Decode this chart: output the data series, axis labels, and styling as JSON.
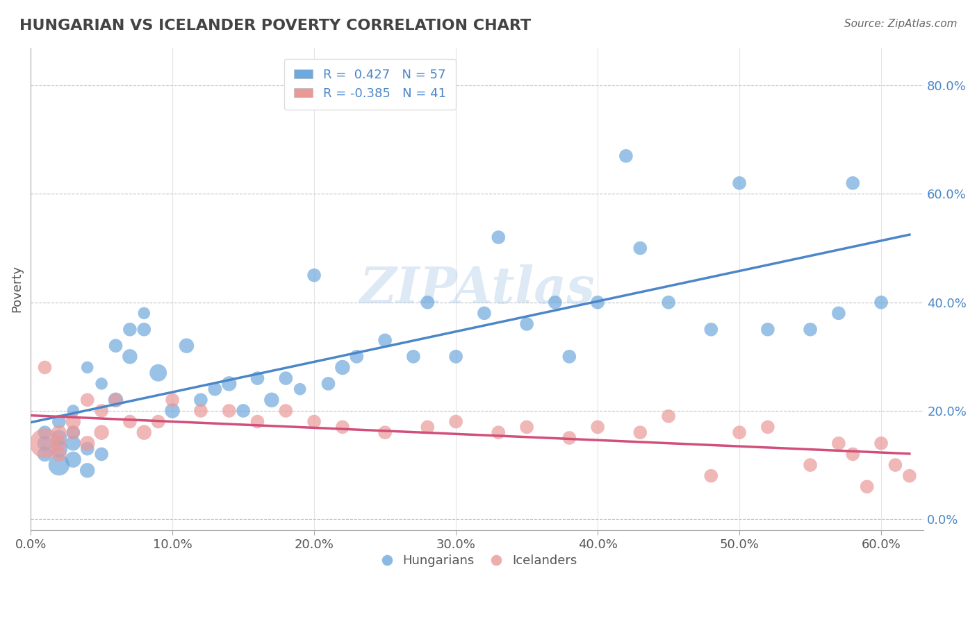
{
  "title": "HUNGARIAN VS ICELANDER POVERTY CORRELATION CHART",
  "source": "Source: ZipAtlas.com",
  "xlim": [
    0.0,
    0.63
  ],
  "ylim": [
    -0.02,
    0.87
  ],
  "blue_R": 0.427,
  "blue_N": 57,
  "pink_R": -0.385,
  "pink_N": 41,
  "blue_color": "#6fa8dc",
  "pink_color": "#ea9999",
  "blue_line_color": "#4a86c8",
  "pink_line_color": "#d14f7a",
  "legend_blue_label": "R =  0.427   N = 57",
  "legend_pink_label": "R = -0.385   N = 41",
  "hungarian_label": "Hungarians",
  "icelander_label": "Icelanders",
  "title_color": "#434343",
  "source_color": "#666666",
  "grid_color": "#c0c0c0",
  "watermark": "ZIPAtlas",
  "blue_x": [
    0.01,
    0.01,
    0.01,
    0.02,
    0.02,
    0.02,
    0.02,
    0.03,
    0.03,
    0.03,
    0.03,
    0.04,
    0.04,
    0.04,
    0.05,
    0.05,
    0.06,
    0.06,
    0.07,
    0.07,
    0.08,
    0.08,
    0.09,
    0.1,
    0.11,
    0.12,
    0.13,
    0.14,
    0.15,
    0.16,
    0.17,
    0.18,
    0.19,
    0.2,
    0.21,
    0.22,
    0.23,
    0.25,
    0.27,
    0.28,
    0.3,
    0.32,
    0.33,
    0.35,
    0.37,
    0.38,
    0.4,
    0.42,
    0.43,
    0.45,
    0.48,
    0.5,
    0.52,
    0.55,
    0.57,
    0.58,
    0.6
  ],
  "blue_y": [
    0.12,
    0.14,
    0.16,
    0.1,
    0.13,
    0.15,
    0.18,
    0.11,
    0.14,
    0.16,
    0.2,
    0.09,
    0.13,
    0.28,
    0.12,
    0.25,
    0.22,
    0.32,
    0.35,
    0.3,
    0.35,
    0.38,
    0.27,
    0.2,
    0.32,
    0.22,
    0.24,
    0.25,
    0.2,
    0.26,
    0.22,
    0.26,
    0.24,
    0.45,
    0.25,
    0.28,
    0.3,
    0.33,
    0.3,
    0.4,
    0.3,
    0.38,
    0.52,
    0.36,
    0.4,
    0.3,
    0.4,
    0.67,
    0.5,
    0.4,
    0.35,
    0.62,
    0.35,
    0.35,
    0.38,
    0.62,
    0.4
  ],
  "blue_size": [
    30,
    30,
    25,
    60,
    40,
    35,
    25,
    35,
    30,
    25,
    20,
    30,
    25,
    20,
    25,
    20,
    30,
    25,
    25,
    30,
    25,
    20,
    40,
    30,
    30,
    25,
    25,
    30,
    25,
    25,
    30,
    25,
    20,
    25,
    25,
    30,
    25,
    25,
    25,
    25,
    25,
    25,
    25,
    25,
    25,
    25,
    25,
    25,
    25,
    25,
    25,
    25,
    25,
    25,
    25,
    25,
    25
  ],
  "pink_x": [
    0.01,
    0.01,
    0.02,
    0.02,
    0.02,
    0.03,
    0.03,
    0.04,
    0.04,
    0.05,
    0.05,
    0.06,
    0.07,
    0.08,
    0.09,
    0.1,
    0.12,
    0.14,
    0.16,
    0.18,
    0.2,
    0.22,
    0.25,
    0.28,
    0.3,
    0.33,
    0.35,
    0.38,
    0.4,
    0.43,
    0.45,
    0.48,
    0.5,
    0.52,
    0.55,
    0.57,
    0.58,
    0.59,
    0.6,
    0.61,
    0.62
  ],
  "pink_y": [
    0.14,
    0.28,
    0.16,
    0.14,
    0.12,
    0.18,
    0.16,
    0.14,
    0.22,
    0.16,
    0.2,
    0.22,
    0.18,
    0.16,
    0.18,
    0.22,
    0.2,
    0.2,
    0.18,
    0.2,
    0.18,
    0.17,
    0.16,
    0.17,
    0.18,
    0.16,
    0.17,
    0.15,
    0.17,
    0.16,
    0.19,
    0.08,
    0.16,
    0.17,
    0.1,
    0.14,
    0.12,
    0.06,
    0.14,
    0.1,
    0.08
  ],
  "pink_size": [
    120,
    25,
    30,
    30,
    30,
    30,
    25,
    30,
    25,
    30,
    25,
    25,
    25,
    30,
    25,
    25,
    25,
    25,
    25,
    25,
    25,
    25,
    25,
    25,
    25,
    25,
    25,
    25,
    25,
    25,
    25,
    25,
    25,
    25,
    25,
    25,
    25,
    25,
    25,
    25,
    25
  ]
}
